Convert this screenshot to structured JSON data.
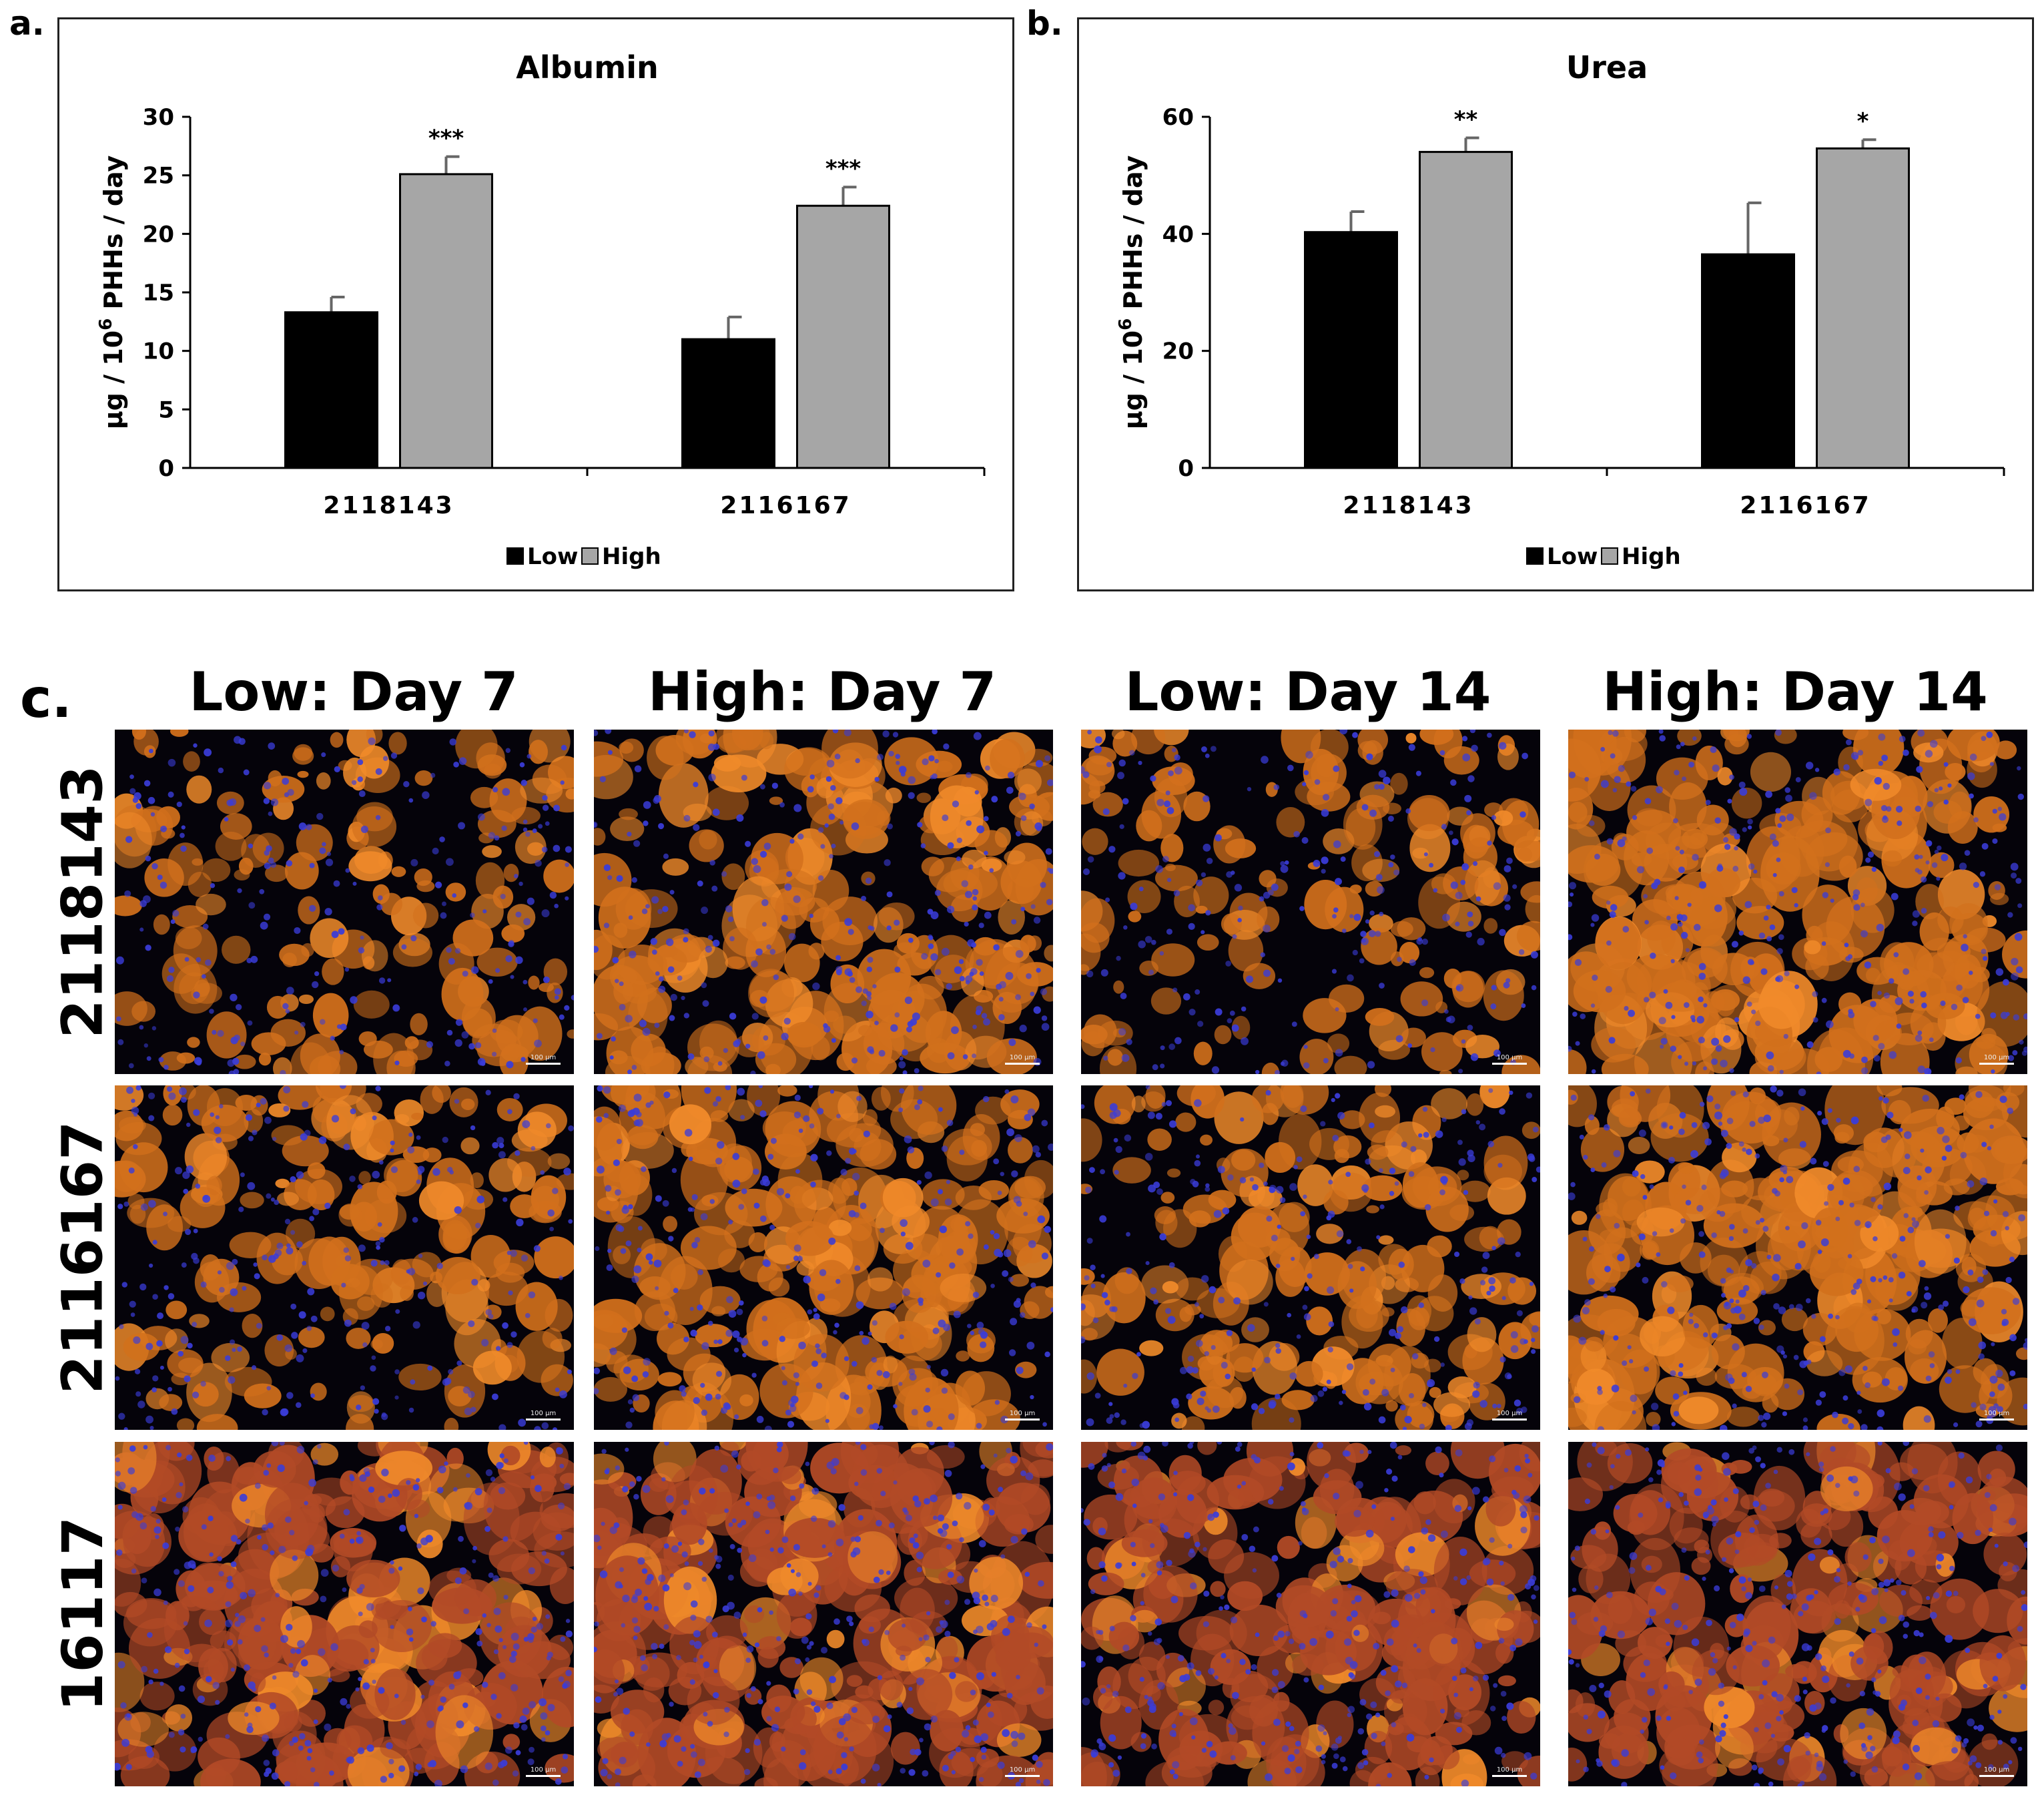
{
  "panels": {
    "a": "a.",
    "b": "b.",
    "c": "c."
  },
  "chart_data": [
    {
      "type": "bar",
      "title": "Albumin",
      "ylabel_parts": [
        "μg / 10",
        "6",
        " PHHs / day"
      ],
      "xlabel": "",
      "categories": [
        "2118143",
        "2116167"
      ],
      "ylim": [
        0,
        30
      ],
      "yticks": [
        0,
        5,
        10,
        15,
        20,
        25,
        30
      ],
      "series": [
        {
          "name": "Low",
          "color": "#000000",
          "values": [
            13.3,
            11.0
          ],
          "errors": [
            1.3,
            1.9
          ]
        },
        {
          "name": "High",
          "color": "#a6a6a6",
          "values": [
            25.1,
            22.4
          ],
          "errors": [
            1.5,
            1.6
          ]
        }
      ],
      "annotations": [
        {
          "category": 0,
          "series": 1,
          "text": "***"
        },
        {
          "category": 1,
          "series": 1,
          "text": "***"
        }
      ],
      "legend": [
        "Low",
        "High"
      ],
      "legend_position": "bottom"
    },
    {
      "type": "bar",
      "title": "Urea",
      "ylabel_parts": [
        "μg / 10",
        "6",
        " PHHs / day"
      ],
      "xlabel": "",
      "categories": [
        "2118143",
        "2116167"
      ],
      "ylim": [
        0,
        60
      ],
      "yticks": [
        0,
        20,
        40,
        60
      ],
      "series": [
        {
          "name": "Low",
          "color": "#000000",
          "values": [
            40.3,
            36.5
          ],
          "errors": [
            3.5,
            8.8
          ]
        },
        {
          "name": "High",
          "color": "#a6a6a6",
          "values": [
            54.0,
            54.6
          ],
          "errors": [
            2.4,
            1.5
          ]
        }
      ],
      "annotations": [
        {
          "category": 0,
          "series": 1,
          "text": "**"
        },
        {
          "category": 1,
          "series": 1,
          "text": "*"
        }
      ],
      "legend": [
        "Low",
        "High"
      ],
      "legend_position": "bottom"
    }
  ],
  "micrographs": {
    "columns": [
      "Low: Day 7",
      "High: Day 7",
      "Low: Day 14",
      "High: Day 14"
    ],
    "rows": [
      "2118143",
      "2116167",
      "16117"
    ],
    "scale_bar_label": "100 μm",
    "colors": {
      "background": "#05030a",
      "cytoplasm": "#d2701c",
      "bright": "#f08a2a",
      "dense": "#b24a26",
      "nuclei": "#3a3cd8"
    }
  }
}
